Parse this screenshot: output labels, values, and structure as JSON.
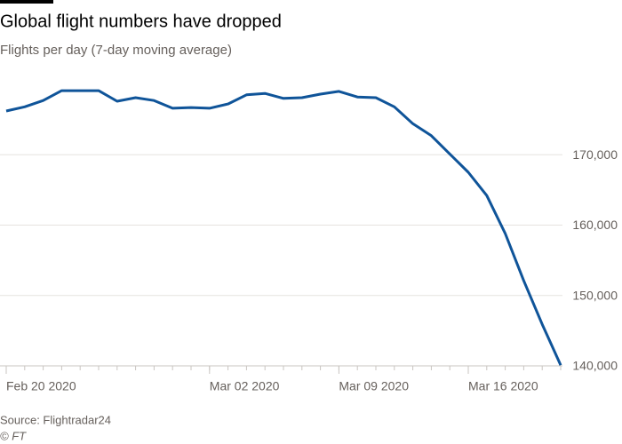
{
  "chart_data": {
    "type": "line",
    "title": "Global flight numbers have dropped",
    "subtitle": "Flights per day (7-day moving average)",
    "source": "Source: Flightradar24",
    "credit": "© FT",
    "x": [
      "2020-02-20",
      "2020-02-21",
      "2020-02-22",
      "2020-02-23",
      "2020-02-24",
      "2020-02-25",
      "2020-02-26",
      "2020-02-27",
      "2020-02-28",
      "2020-02-29",
      "2020-03-01",
      "2020-03-02",
      "2020-03-03",
      "2020-03-04",
      "2020-03-05",
      "2020-03-06",
      "2020-03-07",
      "2020-03-08",
      "2020-03-09",
      "2020-03-10",
      "2020-03-11",
      "2020-03-12",
      "2020-03-13",
      "2020-03-14",
      "2020-03-15",
      "2020-03-16",
      "2020-03-17",
      "2020-03-18",
      "2020-03-19",
      "2020-03-20",
      "2020-03-21"
    ],
    "values": [
      176200,
      176800,
      177700,
      179100,
      179100,
      179100,
      177600,
      178100,
      177700,
      176600,
      176700,
      176600,
      177200,
      178500,
      178700,
      178000,
      178100,
      178600,
      179000,
      178200,
      178100,
      176800,
      174400,
      172700,
      170100,
      167500,
      164200,
      158800,
      152100,
      145900,
      140100
    ],
    "color": "#0f5499",
    "xlim": [
      "2020-02-20",
      "2020-03-21"
    ],
    "xticks": [
      {
        "value": "2020-02-20",
        "label": "Feb 20 2020"
      },
      {
        "value": "2020-03-02",
        "label": "Mar 02 2020"
      },
      {
        "value": "2020-03-09",
        "label": "Mar 09 2020"
      },
      {
        "value": "2020-03-16",
        "label": "Mar 16 2020"
      }
    ],
    "ylim": [
      140000,
      181000
    ],
    "yticks": [
      {
        "value": 140000,
        "label": "140,000"
      },
      {
        "value": 150000,
        "label": "150,000"
      },
      {
        "value": 160000,
        "label": "160,000"
      },
      {
        "value": 170000,
        "label": "170,000"
      }
    ],
    "grid": true
  }
}
